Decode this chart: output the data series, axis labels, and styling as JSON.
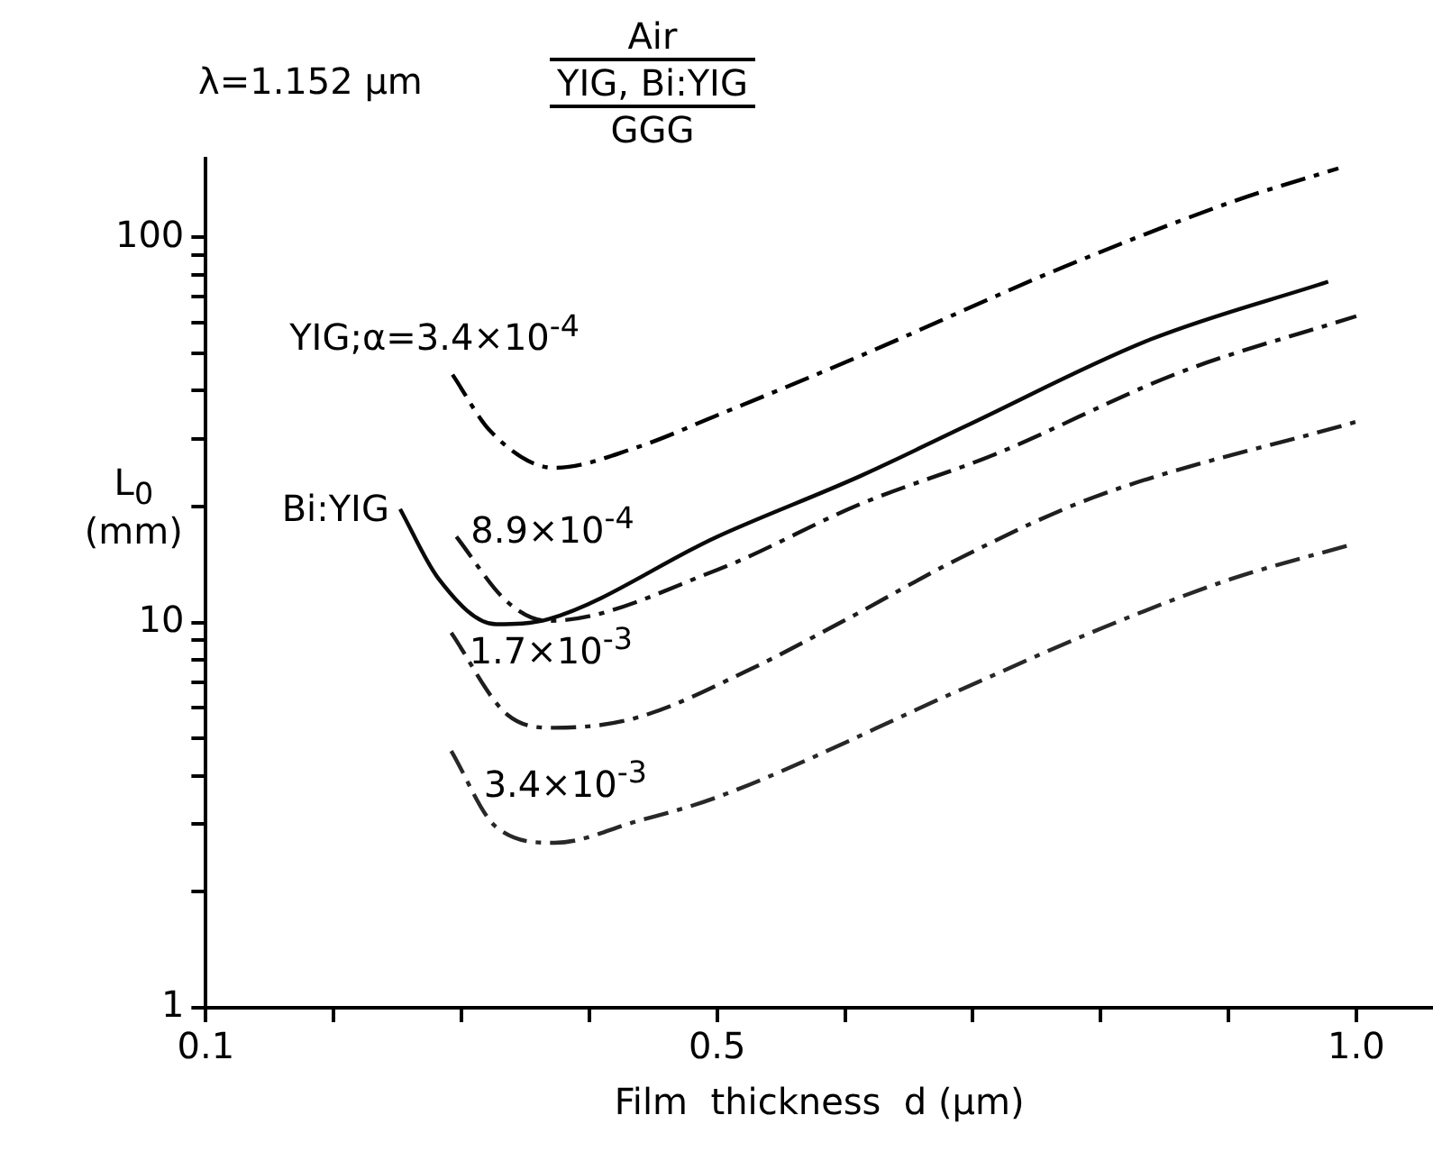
{
  "chart_data": {
    "type": "line",
    "xlabel": "Film  thickness  d (μm)",
    "ylabel": "L$_{0}$ (mm)",
    "annotations": [
      "λ=1.152 μm",
      "Air",
      "YIG, Bi:YIG",
      "GGG"
    ],
    "log": "y",
    "grid": false,
    "legend": false,
    "marker": "none",
    "xlim": [
      0.1,
      1.06
    ],
    "xticks": [
      {
        "value": 0.1,
        "label": "0.1"
      },
      {
        "value": 0.2,
        "label": null
      },
      {
        "value": 0.3,
        "label": null
      },
      {
        "value": 0.4,
        "label": null
      },
      {
        "value": 0.5,
        "label": "0.5"
      },
      {
        "value": 0.6,
        "label": null
      },
      {
        "value": 0.7,
        "label": null
      },
      {
        "value": 0.8,
        "label": null
      },
      {
        "value": 0.9,
        "label": null
      },
      {
        "value": 1.0,
        "label": "1.0"
      }
    ],
    "ylim": [
      1,
      160
    ],
    "yticks": [
      1,
      {
        "value": 2,
        "label": null
      },
      {
        "value": 3,
        "label": null
      },
      {
        "value": 4,
        "label": null
      },
      {
        "value": 5,
        "label": null
      },
      {
        "value": 6,
        "label": null
      },
      {
        "value": 7,
        "label": null
      },
      {
        "value": 8,
        "label": null
      },
      {
        "value": 9,
        "label": null
      },
      10,
      {
        "value": 20,
        "label": null
      },
      {
        "value": 30,
        "label": null
      },
      {
        "value": 40,
        "label": null
      },
      {
        "value": 50,
        "label": null
      },
      {
        "value": 60,
        "label": null
      },
      {
        "value": 70,
        "label": null
      },
      {
        "value": 80,
        "label": null
      },
      {
        "value": 90,
        "label": null
      },
      100
    ],
    "series": [
      {
        "name": "YIG;α=3.4×10$^{-4}$",
        "color": "#000000",
        "line_style": "dashed",
        "x": [
          0.293,
          0.323,
          0.373,
          0.436,
          0.5,
          0.612,
          0.771,
          0.907,
          0.986
        ],
        "values": [
          44,
          31.3,
          25.2,
          28.4,
          34.5,
          49.2,
          83.7,
          125,
          151
        ]
      },
      {
        "name": "Bi:YIG",
        "color": "#0a0a0a",
        "line_style": "solid",
        "x": [
          0.252,
          0.282,
          0.327,
          0.368,
          0.5,
          0.612,
          0.694,
          0.839,
          0.978
        ],
        "values": [
          19.7,
          13,
          9.9,
          10.2,
          16.7,
          24,
          32.3,
          54.3,
          76.7
        ]
      },
      {
        "name": "8.9×10$^{-4}$",
        "color": "#141414",
        "line_style": "dashed",
        "x": [
          0.296,
          0.336,
          0.368,
          0.5,
          0.612,
          0.717,
          0.862,
          1.0
        ],
        "values": [
          16.7,
          11.3,
          10.1,
          13.7,
          20.3,
          27.3,
          44.6,
          62.4
        ]
      },
      {
        "name": "1.7×10$^{-3}$",
        "color": "#1e1e1e",
        "line_style": "dashed",
        "x": [
          0.292,
          0.336,
          0.373,
          0.436,
          0.527,
          0.599,
          0.69,
          0.794,
          1.0
        ],
        "values": [
          9.4,
          5.76,
          5.33,
          5.65,
          7.59,
          10.1,
          14.7,
          21.1,
          33.2
        ]
      },
      {
        "name": "3.4×10$^{-3}$",
        "color": "#282828",
        "line_style": "dashed",
        "x": [
          0.292,
          0.327,
          0.373,
          0.436,
          0.5,
          0.69,
          0.802,
          0.903,
          0.995
        ],
        "values": [
          4.64,
          2.95,
          2.68,
          3.04,
          3.52,
          6.68,
          9.7,
          13,
          15.9
        ]
      }
    ]
  }
}
